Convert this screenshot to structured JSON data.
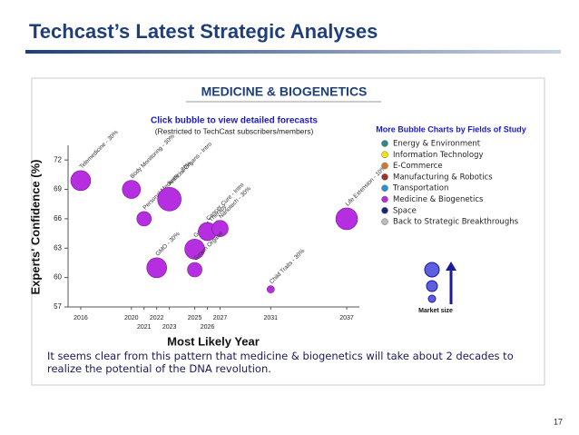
{
  "slide": {
    "title": "Techcast’s Latest Strategic Analyses",
    "page_number": "17"
  },
  "chart_data": {
    "type": "bubble",
    "title": "MEDICINE & BIOGENETICS",
    "subtitle": "Click bubble to view detailed forecasts",
    "note": "(Restricted to TechCast subscribers/members)",
    "x_label": "Most Likely Year",
    "y_label": "Experts' Confidence (%)",
    "xlim": [
      2015,
      2038
    ],
    "xticks": [
      2016,
      2020,
      2021,
      2022,
      2023,
      2025,
      2026,
      2027,
      2031,
      2037
    ],
    "ylim": [
      57,
      73.5
    ],
    "yticks": [
      57,
      60,
      63,
      66,
      69,
      72
    ],
    "color": "#b52ee0",
    "points": [
      {
        "label": "Telemedicine - 30%",
        "x": 2016,
        "y": 69.9,
        "size": 11
      },
      {
        "label": "Body Monitoring - 30%",
        "x": 2020,
        "y": 69,
        "size": 10
      },
      {
        "label": "Personal Medicine - 30%",
        "x": 2021,
        "y": 66,
        "size": 8
      },
      {
        "label": "Artificial Organs - Intro",
        "x": 2023,
        "y": 68,
        "size": 13
      },
      {
        "label": "GMO - 30%",
        "x": 2022,
        "y": 61,
        "size": 11
      },
      {
        "label": "Genetic Therapy",
        "x": 2025,
        "y": 62.9,
        "size": 11
      },
      {
        "label": "Cancer Cure - Intro",
        "x": 2026,
        "y": 64.7,
        "size": 10
      },
      {
        "label": "Nanotech - 30%",
        "x": 2027,
        "y": 65,
        "size": 9
      },
      {
        "label": "Grown Organs",
        "x": 2025,
        "y": 60.8,
        "size": 8
      },
      {
        "label": "Child Traits - 30%",
        "x": 2031,
        "y": 58.8,
        "size": 4
      },
      {
        "label": "Life Extension - 10%",
        "x": 2037,
        "y": 66,
        "size": 12
      }
    ],
    "legend_title": "More Bubble Charts by Fields of Study",
    "legend": [
      {
        "name": "Energy & Environment",
        "color": "#2a8a8a"
      },
      {
        "name": "Information Technology",
        "color": "#f5e600"
      },
      {
        "name": "E-Commerce",
        "color": "#d2782a"
      },
      {
        "name": "Manufacturing & Robotics",
        "color": "#a0322d"
      },
      {
        "name": "Transportation",
        "color": "#2b8fd6"
      },
      {
        "name": "Medicine & Biogenetics",
        "color": "#b52ee0"
      },
      {
        "name": "Space",
        "color": "#1a237e"
      },
      {
        "name": "Back to Strategic Breakthroughs",
        "color": "#bbbbbb"
      }
    ],
    "size_legend": "Market size",
    "caption": "It seems clear from this pattern that medicine & biogenetics will take about 2 decades to realize the potential of the DNA revolution."
  }
}
